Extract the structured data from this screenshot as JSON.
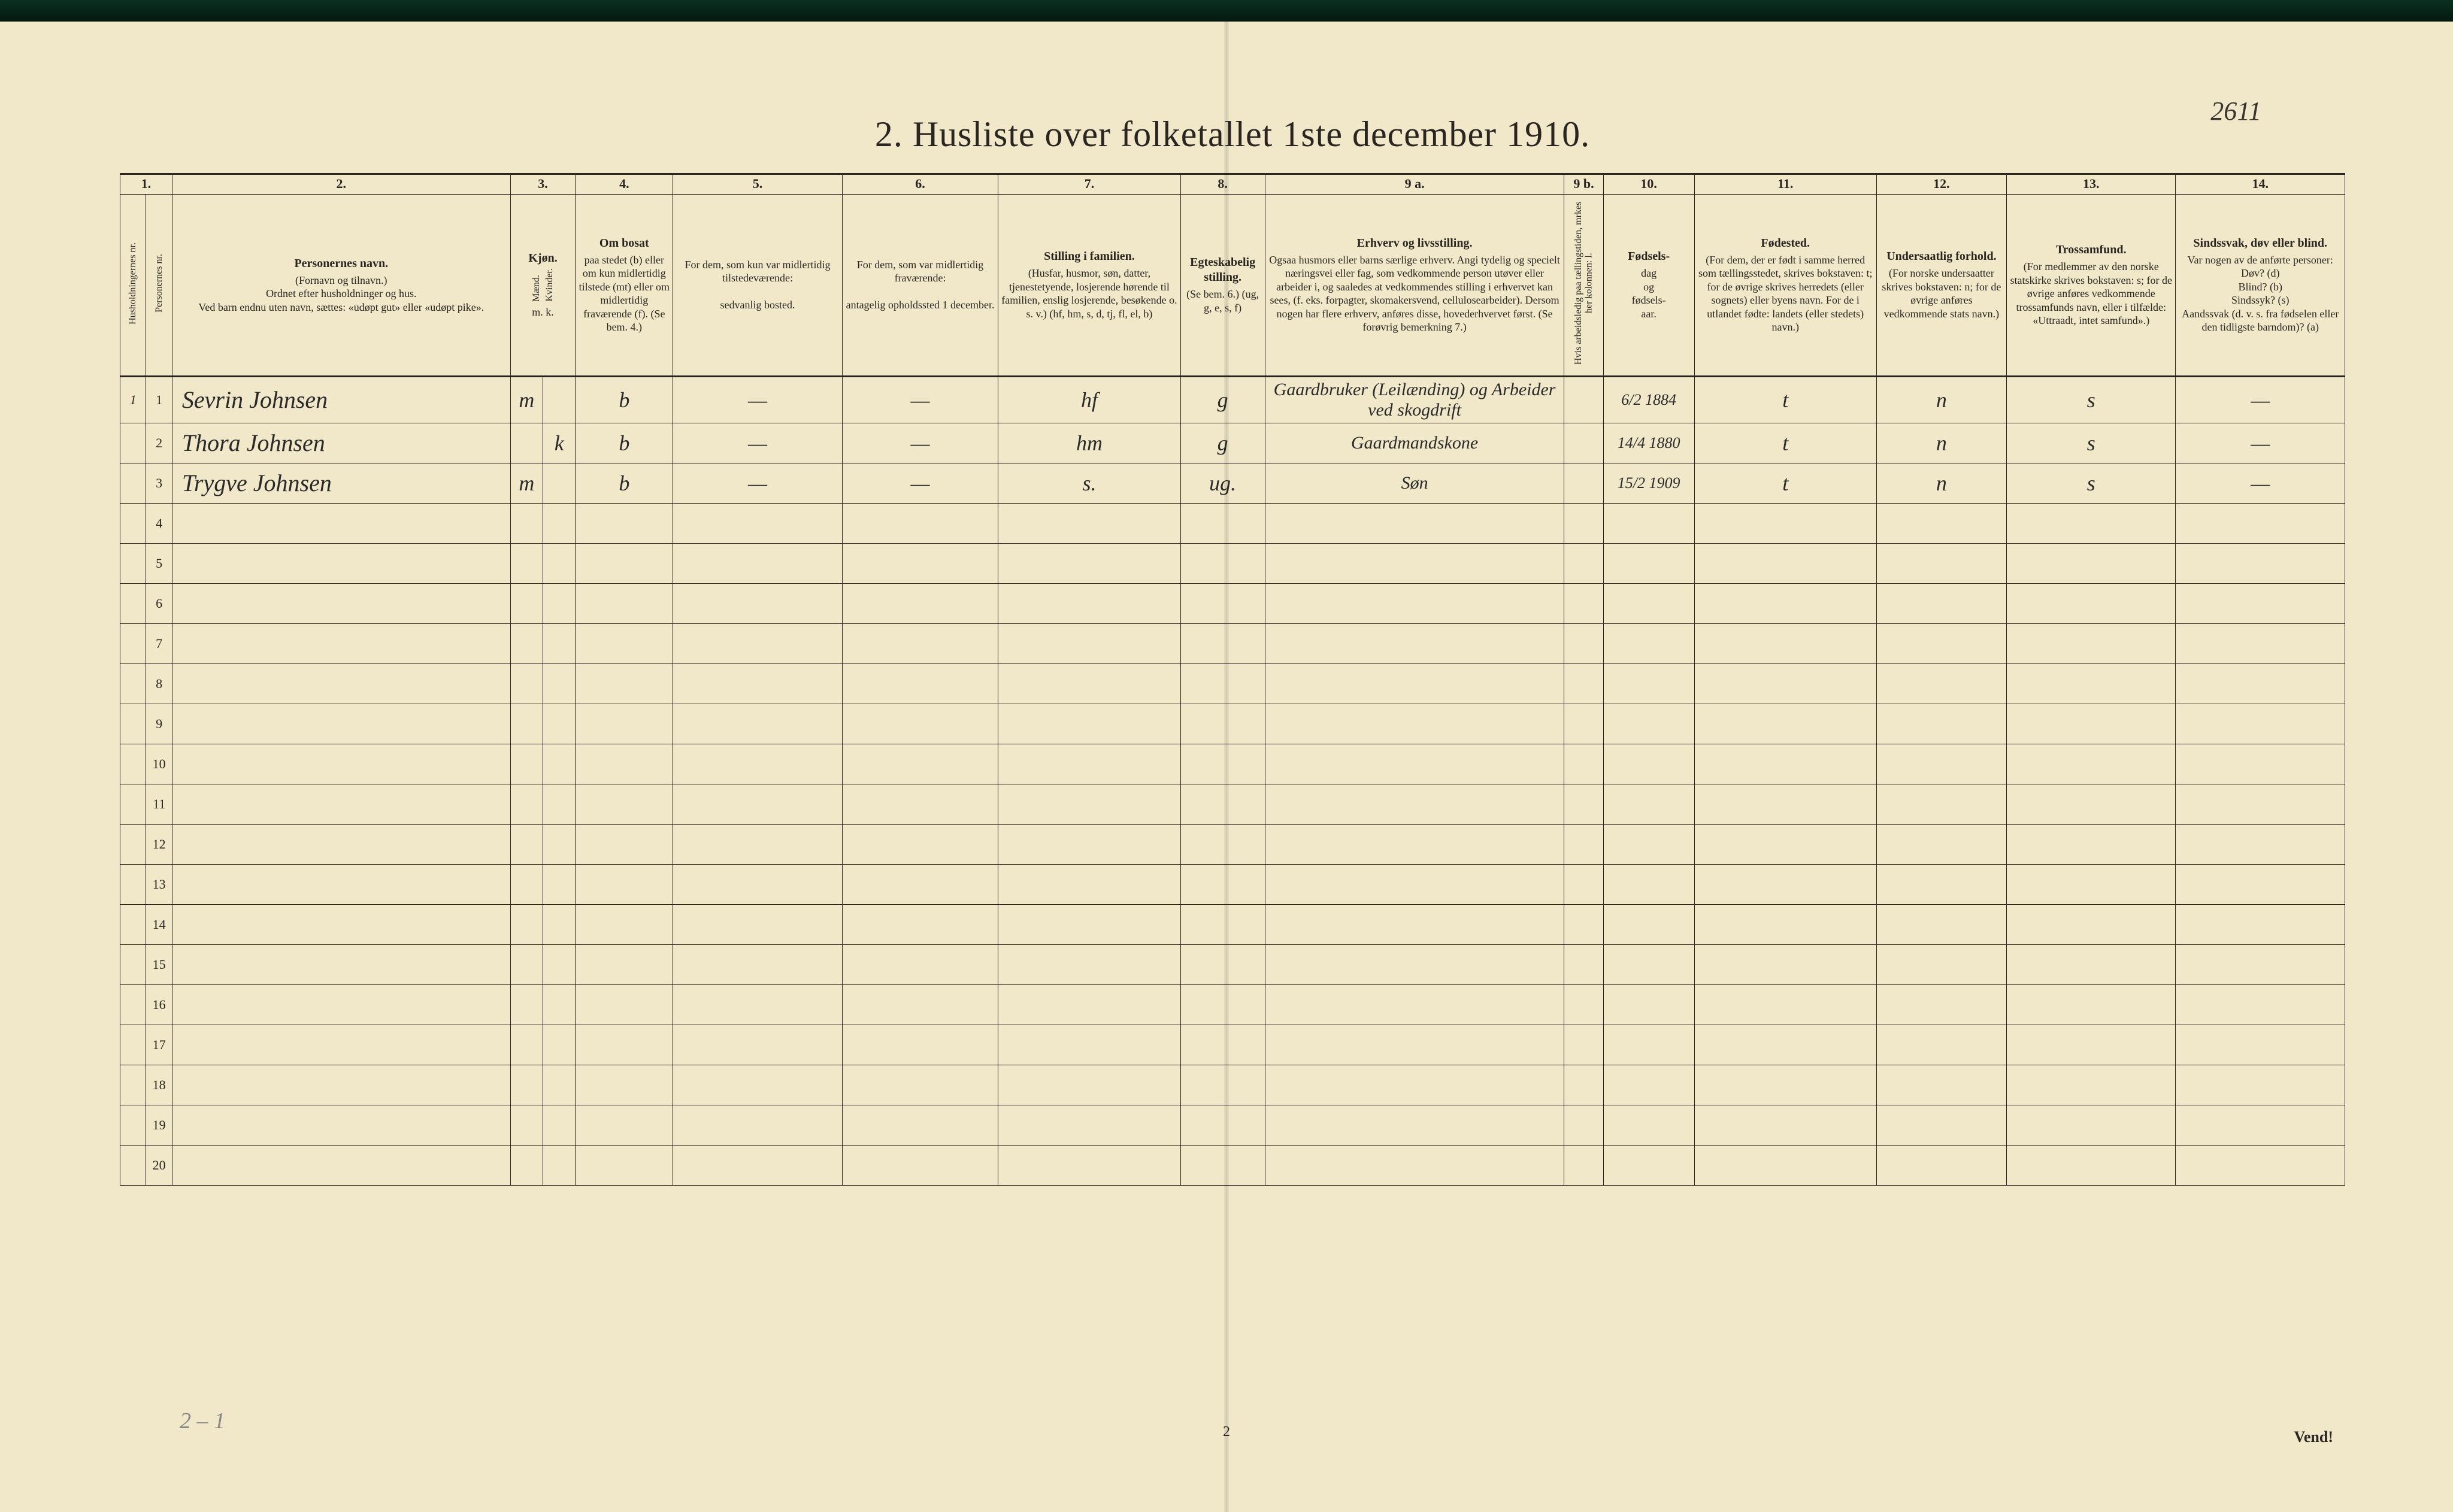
{
  "document": {
    "handwritten_page_no": "2611",
    "title": "2.  Husliste over folketallet 1ste december 1910.",
    "bottom_note": "2 – 1",
    "bottom_page_num": "2",
    "vend": "Vend!"
  },
  "columns": {
    "numbers": [
      "1.",
      "2.",
      "3.",
      "4.",
      "5.",
      "6.",
      "7.",
      "8.",
      "9 a.",
      "9 b.",
      "10.",
      "11.",
      "12.",
      "13.",
      "14."
    ],
    "h1a": "Husholdningernes nr.",
    "h1b": "Personernes nr.",
    "h2_title": "Personernes navn.",
    "h2_body": "(Fornavn og tilnavn.)\nOrdnet efter husholdninger og hus.\nVed barn endnu uten navn, sættes: «udøpt gut» eller «udøpt pike».",
    "h3_title": "Kjøn.",
    "h3a": "Mænd.",
    "h3b": "Kvinder.",
    "h3_sub": "m.   k.",
    "h4_title": "Om bosat",
    "h4_body": "paa stedet (b) eller om kun midlertidig tilstede (mt) eller om midlertidig fraværende (f). (Se bem. 4.)",
    "h5_body": "For dem, som kun var midlertidig tilstedeværende:\n\nsedvanlig bosted.",
    "h6_body": "For dem, som var midlertidig fraværende:\n\nantagelig opholdssted 1 december.",
    "h7_title": "Stilling i familien.",
    "h7_body": "(Husfar, husmor, søn, datter, tjenestetyende, losjerende hørende til familien, enslig losjerende, besøkende o. s. v.)\n(hf, hm, s, d, tj, fl, el, b)",
    "h8_title": "Egteskabelig stilling.",
    "h8_body": "(Se bem. 6.)\n(ug, g, e, s, f)",
    "h9a_title": "Erhverv og livsstilling.",
    "h9a_body": "Ogsaa husmors eller barns særlige erhverv. Angi tydelig og specielt næringsvei eller fag, som vedkommende person utøver eller arbeider i, og saaledes at vedkommendes stilling i erhvervet kan sees, (f. eks. forpagter, skomakersvend, cellulosearbeider). Dersom nogen har flere erhverv, anføres disse, hovederhvervet først. (Se forøvrig bemerkning 7.)",
    "h9b": "Hvis arbeidsledig paa tællingstiden, mrkes her kolonnen: l.",
    "h10_title": "Fødsels-",
    "h10_body": "dag\nog\nfødsels-\naar.",
    "h11_title": "Fødested.",
    "h11_body": "(For dem, der er født i samme herred som tællingsstedet, skrives bokstaven: t; for de øvrige skrives herredets (eller sognets) eller byens navn. For de i utlandet fødte: landets (eller stedets) navn.)",
    "h12_title": "Undersaatlig forhold.",
    "h12_body": "(For norske undersaatter skrives bokstaven: n; for de øvrige anføres vedkommende stats navn.)",
    "h13_title": "Trossamfund.",
    "h13_body": "(For medlemmer av den norske statskirke skrives bokstaven: s; for de øvrige anføres vedkommende trossamfunds navn, eller i tilfælde: «Uttraadt, intet samfund».)",
    "h14_title": "Sindssvak, døv eller blind.",
    "h14_body": "Var nogen av de anførte personer:\nDøv? (d)\nBlind? (b)\nSindssyk? (s)\nAandssvak (d. v. s. fra fødselen eller den tidligste barndom)? (a)"
  },
  "rows": [
    {
      "hh": "1",
      "pn": "1",
      "name": "Sevrin Johnsen",
      "sex_m": "m",
      "sex_k": "",
      "bosat": "b",
      "col5": "—",
      "col6": "—",
      "col7": "hf",
      "col8": "g",
      "col9a": "Gaardbruker (Leilænding) og Arbeider ved skogdrift",
      "col9b": "",
      "col10": "6/2 1884",
      "col11": "t",
      "col12": "n",
      "col13": "s",
      "col14": "—"
    },
    {
      "hh": "",
      "pn": "2",
      "name": "Thora Johnsen",
      "sex_m": "",
      "sex_k": "k",
      "bosat": "b",
      "col5": "—",
      "col6": "—",
      "col7": "hm",
      "col8": "g",
      "col9a": "Gaardmandskone",
      "col9b": "",
      "col10": "14/4 1880",
      "col11": "t",
      "col12": "n",
      "col13": "s",
      "col14": "—"
    },
    {
      "hh": "",
      "pn": "3",
      "name": "Trygve Johnsen",
      "sex_m": "m",
      "sex_k": "",
      "bosat": "b",
      "col5": "—",
      "col6": "—",
      "col7": "s.",
      "col8": "ug.",
      "col9a": "Søn",
      "col9b": "",
      "col10": "15/2 1909",
      "col11": "t",
      "col12": "n",
      "col13": "s",
      "col14": "—"
    }
  ],
  "empty_row_numbers": [
    "4",
    "5",
    "6",
    "7",
    "8",
    "9",
    "10",
    "11",
    "12",
    "13",
    "14",
    "15",
    "16",
    "17",
    "18",
    "19",
    "20"
  ]
}
